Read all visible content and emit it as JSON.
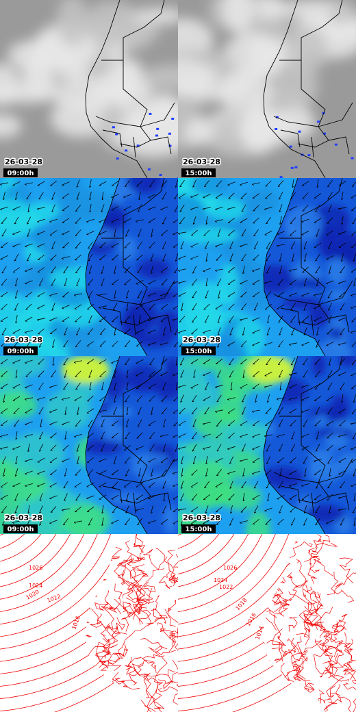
{
  "panels": [
    {
      "date": "26-03-28",
      "time": "09:00h"
    },
    {
      "date": "26-03-28",
      "time": "15:00h"
    },
    {
      "date": "26-03-28",
      "time": "09:00h"
    },
    {
      "date": "26-03-28",
      "time": "15:00h"
    },
    {
      "date": "26-03-28",
      "time": "09:00h"
    },
    {
      "date": "26-03-28",
      "time": "15:00h"
    }
  ],
  "isobars": {
    "left": [
      "1026",
      "1024",
      "1022",
      "1020",
      "1016"
    ],
    "right": [
      "1026",
      "1024",
      "1022",
      "1018",
      "1016",
      "1014"
    ]
  }
}
